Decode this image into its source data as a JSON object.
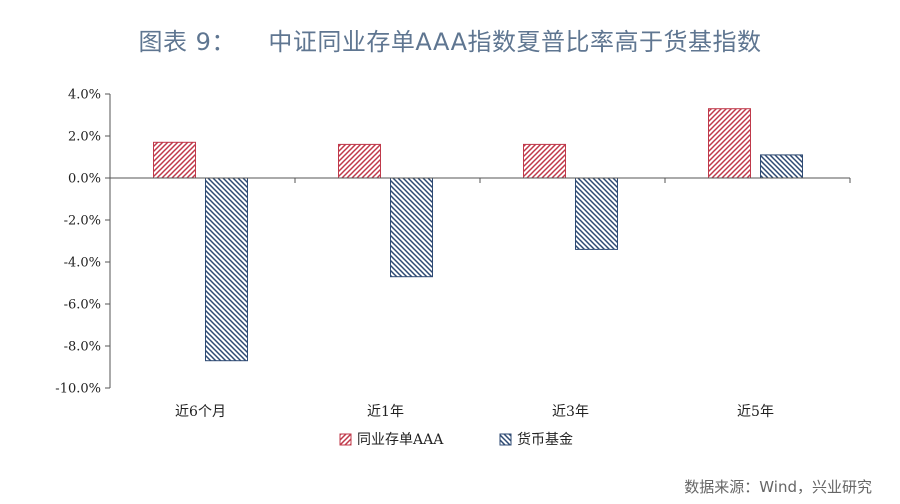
{
  "header": {
    "title": "图表 9：    中证同业存单AAA指数夏普比率高于货基指数"
  },
  "footer": {
    "source": "数据来源：Wind，兴业研究"
  },
  "chart_data": {
    "type": "bar",
    "categories": [
      "近6个月",
      "近1年",
      "近3年",
      "近5年"
    ],
    "series": [
      {
        "name": "同业存单AAA",
        "values": [
          1.7,
          1.6,
          1.6,
          3.3
        ],
        "color": "#c0394a",
        "pattern": "hatch-up"
      },
      {
        "name": "货币基金",
        "values": [
          -8.7,
          -4.7,
          -3.4,
          1.1
        ],
        "color": "#2e4a73",
        "pattern": "hatch-down"
      }
    ],
    "ylim": [
      -10,
      4
    ],
    "yticks": [
      "4.0%",
      "2.0%",
      "0.0%",
      "-2.0%",
      "-4.0%",
      "-6.0%",
      "-8.0%",
      "-10.0%"
    ],
    "ytick_values": [
      4,
      2,
      0,
      -2,
      -4,
      -6,
      -8,
      -10
    ],
    "legend_position": "bottom",
    "grid": false
  }
}
